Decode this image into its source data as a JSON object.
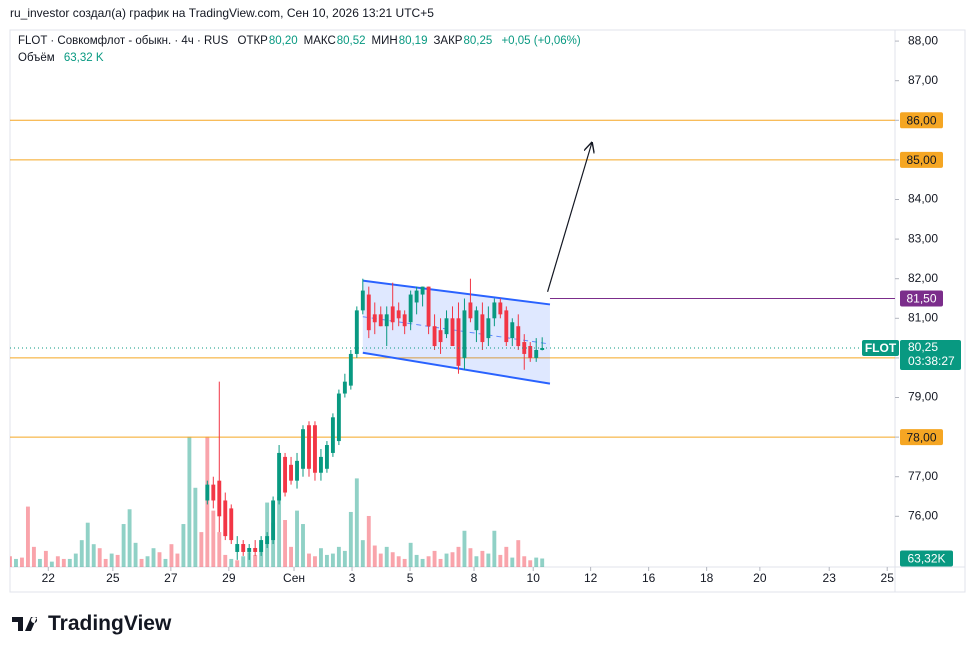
{
  "header": {
    "author_line": "ru_investor создал(а) график на TradingView.com, Сен 10, 2026 13:21 UTC+5",
    "logo": "TradingView"
  },
  "chart_data": {
    "type": "candlestick",
    "symbol_line": "FLOT · Совкомфлот - обыкн. · 4ч · RUS",
    "ohlc_legend": [
      {
        "name": "ОТКР",
        "value": 80.2,
        "label": "80,20"
      },
      {
        "name": "МАКС",
        "value": 80.52,
        "label": "80,52"
      },
      {
        "name": "МИН",
        "value": 80.19,
        "label": "80,19"
      },
      {
        "name": "ЗАКР",
        "value": 80.25,
        "label": "80,25"
      }
    ],
    "change_label": "+0,05 (+0,06%)",
    "volume_legend": {
      "name": "Объём",
      "value": 63.32,
      "label": "63,32 K"
    },
    "up_color": "#089981",
    "down_color": "#f23645",
    "xlim": [
      0,
      148
    ],
    "xticks": [
      {
        "value": 6.4,
        "label": "22"
      },
      {
        "value": 17.2,
        "label": "25"
      },
      {
        "value": 26.9,
        "label": "27"
      },
      {
        "value": 36.6,
        "label": "29"
      },
      {
        "value": 47.5,
        "label": "Сен"
      },
      {
        "value": 57.2,
        "label": "3"
      },
      {
        "value": 66.9,
        "label": "5"
      },
      {
        "value": 77.6,
        "label": "8"
      },
      {
        "value": 87.5,
        "label": "10"
      },
      {
        "value": 97.1,
        "label": "12"
      },
      {
        "value": 106.8,
        "label": "16"
      },
      {
        "value": 116.5,
        "label": "18"
      },
      {
        "value": 125.4,
        "label": "20"
      },
      {
        "value": 137.0,
        "label": "23"
      },
      {
        "value": 146.7,
        "label": "25"
      }
    ],
    "ylim": [
      74.72,
      88.28
    ],
    "yticks": [
      {
        "value": 76,
        "label": "76,00"
      },
      {
        "value": 77,
        "label": "77,00"
      },
      {
        "value": 78,
        "label": "78,00"
      },
      {
        "value": 79,
        "label": "79,00"
      },
      {
        "value": 80,
        "label": "80,00"
      },
      {
        "value": 81,
        "label": "81,00"
      },
      {
        "value": 82,
        "label": "82,00"
      },
      {
        "value": 83,
        "label": "83,00"
      },
      {
        "value": 84,
        "label": "84,00"
      },
      {
        "value": 85,
        "label": "85,00"
      },
      {
        "value": 86,
        "label": "86,00"
      },
      {
        "value": 87,
        "label": "87,00"
      },
      {
        "value": 88,
        "label": "88,00"
      }
    ],
    "grid": false,
    "x": [
      33,
      34,
      35,
      36,
      37,
      38,
      39,
      40,
      41,
      42,
      43,
      44,
      45,
      46,
      47,
      48,
      49,
      50,
      51,
      52,
      53,
      54,
      55,
      56,
      57,
      58,
      59,
      60,
      61,
      62,
      63,
      64,
      65,
      66,
      67,
      68,
      69,
      70,
      71,
      72,
      73,
      74,
      75,
      76,
      77,
      78,
      79,
      80,
      81,
      82,
      83,
      84,
      85,
      86,
      87,
      88,
      89
    ],
    "open": [
      76.4,
      76.8,
      76.9,
      76.4,
      76.2,
      75.1,
      75.3,
      75.1,
      75.2,
      75.1,
      75.3,
      75.4,
      76.4,
      77.5,
      77.3,
      76.9,
      77.2,
      78.3,
      78.3,
      77.1,
      77.2,
      77.6,
      77.9,
      79.1,
      79.3,
      80.1,
      81.2,
      81.6,
      81.1,
      81.1,
      80.8,
      81.3,
      81.2,
      81.1,
      80.9,
      81.4,
      81.6,
      81.8,
      80.8,
      80.7,
      80.6,
      81.0,
      81.0,
      80.0,
      81.4,
      80.7,
      81.1,
      80.5,
      81.0,
      81.4,
      81.2,
      80.5,
      80.8,
      80.4,
      80.3,
      80.0,
      80.2
    ],
    "high": [
      76.9,
      77.0,
      79.4,
      76.6,
      76.3,
      75.5,
      75.4,
      75.3,
      75.4,
      75.5,
      75.6,
      76.5,
      77.8,
      77.6,
      77.5,
      77.6,
      78.3,
      78.4,
      78.4,
      77.7,
      77.9,
      78.6,
      79.2,
      79.6,
      80.2,
      81.3,
      82.0,
      81.8,
      81.4,
      81.3,
      81.3,
      81.9,
      81.4,
      81.2,
      81.7,
      81.8,
      81.8,
      81.8,
      81.1,
      81.0,
      81.2,
      81.3,
      81.4,
      81.5,
      82.0,
      81.3,
      81.4,
      81.3,
      81.5,
      81.5,
      81.3,
      81.0,
      81.1,
      80.6,
      80.4,
      80.5,
      80.52
    ],
    "low": [
      76.3,
      76.2,
      75.6,
      75.4,
      75.3,
      74.9,
      75.0,
      74.9,
      75.0,
      75.0,
      75.2,
      75.3,
      76.3,
      76.5,
      76.8,
      76.7,
      77.0,
      77.0,
      76.9,
      76.9,
      77.1,
      77.5,
      77.8,
      79.0,
      79.2,
      80.0,
      81.1,
      80.5,
      80.6,
      80.8,
      80.3,
      80.7,
      80.8,
      80.6,
      80.7,
      81.1,
      81.3,
      80.6,
      80.2,
      80.1,
      80.5,
      80.3,
      79.6,
      79.7,
      80.9,
      80.4,
      80.2,
      80.3,
      80.8,
      81.0,
      80.3,
      80.3,
      80.2,
      79.7,
      79.9,
      79.9,
      80.19
    ],
    "close": [
      76.8,
      76.4,
      76.0,
      75.5,
      75.4,
      75.3,
      75.1,
      75.2,
      75.1,
      75.4,
      75.5,
      76.4,
      77.6,
      76.6,
      76.9,
      77.4,
      78.2,
      77.2,
      77.1,
      77.5,
      77.8,
      78.5,
      79.1,
      79.4,
      80.1,
      81.2,
      81.7,
      80.7,
      80.9,
      80.8,
      81.1,
      80.9,
      81.0,
      80.8,
      81.6,
      81.7,
      81.8,
      80.8,
      80.3,
      80.4,
      81.0,
      80.3,
      79.8,
      81.2,
      81.0,
      81.2,
      80.4,
      81.0,
      81.4,
      81.1,
      80.4,
      80.9,
      80.3,
      80.1,
      80.0,
      80.2,
      80.25
    ],
    "volume": {
      "ylim": [
        0,
        4000
      ],
      "up": {
        "color": "rgba(8,153,129,0.45)",
        "x": [
          1,
          5,
          7,
          10,
          11,
          12,
          13,
          14,
          17,
          19,
          20,
          21,
          23,
          24,
          26,
          29,
          30,
          31,
          37,
          39,
          40,
          42,
          43,
          44,
          45,
          48,
          49,
          52,
          53,
          54,
          55,
          56,
          57,
          58,
          59,
          63,
          67,
          68,
          69,
          73,
          76,
          78,
          80,
          81,
          84,
          88,
          89
        ],
        "values": [
          60,
          60,
          40,
          60,
          100,
          200,
          330,
          170,
          100,
          320,
          430,
          180,
          80,
          140,
          60,
          320,
          970,
          590,
          60,
          80,
          110,
          170,
          480,
          330,
          520,
          420,
          320,
          140,
          90,
          100,
          150,
          120,
          410,
          660,
          200,
          150,
          180,
          90,
          60,
          100,
          270,
          80,
          100,
          270,
          70,
          70,
          63.32
        ]
      },
      "down": {
        "color": "rgba(242,54,69,0.45)",
        "x": [
          0,
          2,
          3,
          4,
          6,
          8,
          9,
          15,
          16,
          18,
          22,
          25,
          27,
          28,
          32,
          33,
          34,
          35,
          36,
          38,
          41,
          46,
          47,
          50,
          51,
          60,
          61,
          62,
          64,
          65,
          66,
          70,
          71,
          72,
          74,
          75,
          77,
          79,
          82,
          83,
          85,
          86,
          87
        ],
        "values": [
          80,
          70,
          450,
          150,
          120,
          80,
          60,
          140,
          60,
          90,
          60,
          110,
          170,
          100,
          260,
          970,
          420,
          260,
          90,
          50,
          90,
          350,
          150,
          100,
          80,
          380,
          160,
          100,
          110,
          80,
          60,
          80,
          120,
          60,
          110,
          150,
          140,
          120,
          90,
          150,
          200,
          80,
          50
        ]
      },
      "last_label": "63,32K"
    },
    "levels": [
      {
        "value": 86,
        "label": "86,00",
        "color": "#f5a623"
      },
      {
        "value": 85,
        "label": "85,00",
        "color": "#f5a623"
      },
      {
        "value": 80,
        "label": "80,00",
        "color": "#f5a623"
      },
      {
        "value": 78,
        "label": "78,00",
        "color": "#f5a623"
      }
    ],
    "resistance": {
      "value": 81.5,
      "label": "81,50",
      "from_x": 90.3,
      "color": "#7b2d8b"
    },
    "last_price": {
      "value": 80.25,
      "label": "80,25",
      "countdown": "03:38:27",
      "ticker": "FLOT",
      "color": "#089981"
    },
    "channel": {
      "x": [
        59,
        90.3
      ],
      "upper": [
        81.95,
        81.35
      ],
      "lower": [
        80.13,
        79.35
      ],
      "color": "#2962ff"
    },
    "arrow": {
      "x": [
        89.9,
        97.3
      ],
      "y": [
        81.67,
        85.43
      ]
    }
  }
}
